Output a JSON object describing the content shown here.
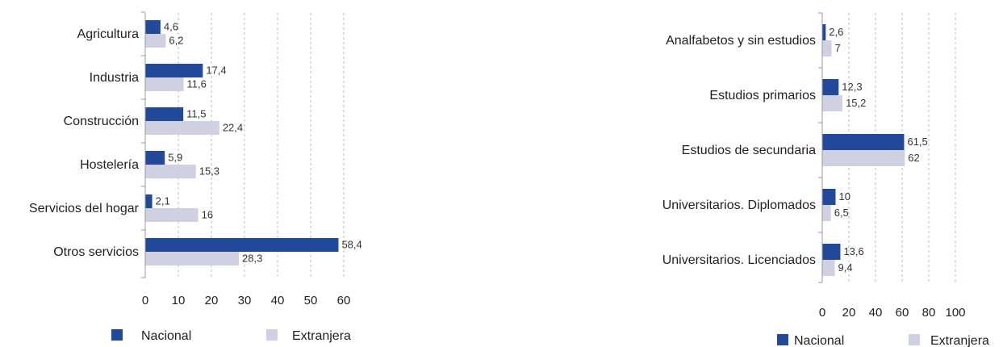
{
  "chart_data": [
    {
      "type": "bar",
      "orientation": "horizontal",
      "categories": [
        "Agricultura",
        "Industria",
        "Construcción",
        "Hostelería",
        "Servicios del hogar",
        "Otros servicios"
      ],
      "series": [
        {
          "name": "Nacional",
          "values": [
            4.6,
            17.4,
            11.5,
            5.9,
            2.1,
            58.4
          ],
          "labels": [
            "4,6",
            "17,4",
            "11,5",
            "5,9",
            "2,1",
            "58,4"
          ],
          "color": "#22499a"
        },
        {
          "name": "Extranjera",
          "values": [
            6.2,
            11.6,
            22.4,
            15.3,
            16,
            28.3
          ],
          "labels": [
            "6,2",
            "11,6",
            "22,4",
            "15,3",
            "16",
            "28,3"
          ],
          "color": "#cfd1e3"
        }
      ],
      "xlim": [
        0,
        60
      ],
      "xticks": [
        "0",
        "10",
        "20",
        "30",
        "40",
        "50",
        "60"
      ],
      "grid": "vertical dashed",
      "legend": "bottom"
    },
    {
      "type": "bar",
      "orientation": "horizontal",
      "categories": [
        "Analfabetos y sin estudios",
        "Estudios primarios",
        "Estudios de secundaria",
        "Universitarios. Diplomados",
        "Universitarios. Licenciados"
      ],
      "series": [
        {
          "name": "Nacional",
          "values": [
            2.6,
            12.3,
            61.5,
            10,
            13.6
          ],
          "labels": [
            "2,6",
            "12,3",
            "61,5",
            "10",
            "13,6"
          ],
          "color": "#22499a"
        },
        {
          "name": "Extranjera",
          "values": [
            7,
            15.2,
            62,
            6.5,
            9.4
          ],
          "labels": [
            "7",
            "15,2",
            "62",
            "6,5",
            "9,4"
          ],
          "color": "#cfd1e3"
        }
      ],
      "xlim": [
        0,
        100
      ],
      "xticks": [
        "0",
        "20",
        "40",
        "60",
        "80",
        "100"
      ],
      "grid": "vertical dashed",
      "legend": "bottom"
    }
  ]
}
